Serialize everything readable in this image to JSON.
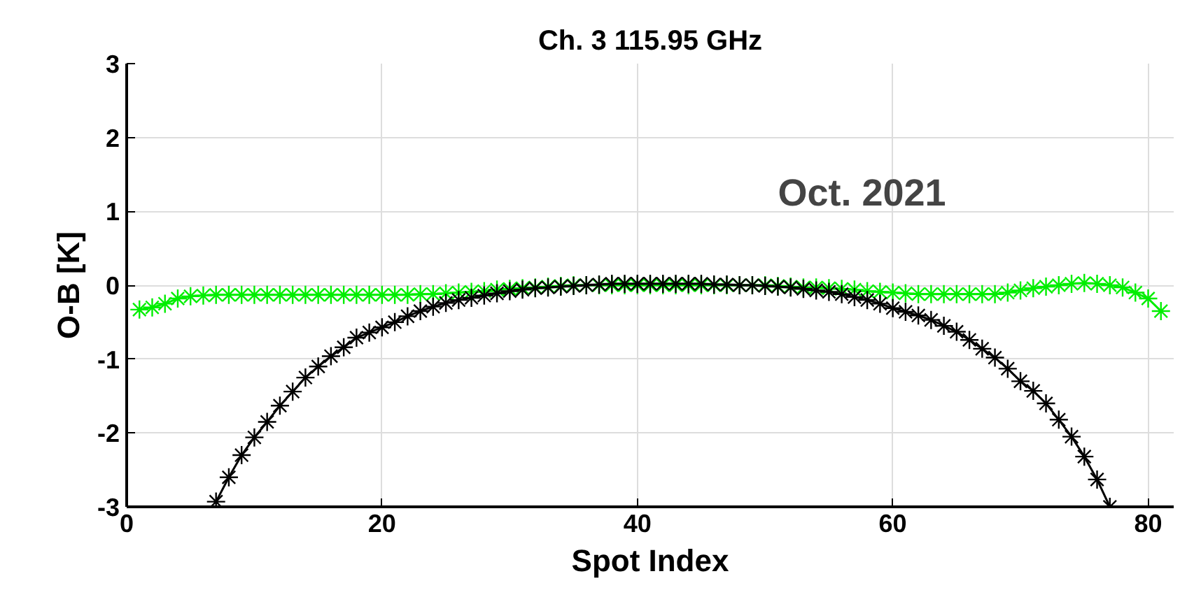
{
  "chart_data": {
    "type": "line",
    "title": "Ch. 3 115.95 GHz",
    "xlabel": "Spot Index",
    "ylabel": "O-B [K]",
    "annotations": [
      "Oct. 2021"
    ],
    "xlim": [
      0,
      82
    ],
    "ylim": [
      -3,
      3
    ],
    "xticks": [
      0,
      20,
      40,
      60,
      80
    ],
    "yticks": [
      -3,
      -2,
      -1,
      0,
      1,
      2,
      3
    ],
    "grid": true,
    "marker": "cross",
    "line_style": "solid",
    "series": [
      {
        "color": "#00ee00",
        "x": [
          1,
          2,
          3,
          4,
          5,
          6,
          7,
          8,
          9,
          10,
          11,
          12,
          13,
          14,
          15,
          16,
          17,
          18,
          19,
          20,
          21,
          22,
          23,
          24,
          25,
          26,
          27,
          28,
          29,
          30,
          31,
          32,
          33,
          34,
          35,
          36,
          37,
          38,
          39,
          40,
          41,
          42,
          43,
          44,
          45,
          46,
          47,
          48,
          49,
          50,
          51,
          52,
          53,
          54,
          55,
          56,
          57,
          58,
          59,
          60,
          61,
          62,
          63,
          64,
          65,
          66,
          67,
          68,
          69,
          70,
          71,
          72,
          73,
          74,
          75,
          76,
          77,
          78,
          79,
          80,
          81
        ],
        "values": [
          -0.33,
          -0.3,
          -0.25,
          -0.18,
          -0.15,
          -0.14,
          -0.13,
          -0.13,
          -0.13,
          -0.13,
          -0.13,
          -0.13,
          -0.13,
          -0.13,
          -0.13,
          -0.13,
          -0.13,
          -0.13,
          -0.13,
          -0.13,
          -0.13,
          -0.13,
          -0.12,
          -0.12,
          -0.11,
          -0.1,
          -0.09,
          -0.08,
          -0.06,
          -0.05,
          -0.04,
          -0.03,
          -0.02,
          -0.01,
          0,
          0,
          0,
          0,
          0,
          0,
          0,
          0,
          0,
          0,
          0,
          0,
          0,
          0,
          0,
          0,
          -0.01,
          -0.02,
          -0.03,
          -0.03,
          -0.04,
          -0.05,
          -0.06,
          -0.08,
          -0.09,
          -0.1,
          -0.11,
          -0.12,
          -0.12,
          -0.12,
          -0.12,
          -0.12,
          -0.12,
          -0.12,
          -0.1,
          -0.07,
          -0.04,
          -0.02,
          0,
          0.02,
          0.03,
          0.02,
          0,
          -0.03,
          -0.1,
          -0.18,
          -0.35
        ]
      },
      {
        "color": "#000000",
        "x": [
          7,
          8,
          9,
          10,
          11,
          12,
          13,
          14,
          15,
          16,
          17,
          18,
          19,
          20,
          21,
          22,
          23,
          24,
          25,
          26,
          27,
          28,
          29,
          30,
          31,
          32,
          33,
          34,
          35,
          36,
          37,
          38,
          39,
          40,
          41,
          42,
          43,
          44,
          45,
          46,
          47,
          48,
          49,
          50,
          51,
          52,
          53,
          54,
          55,
          56,
          57,
          58,
          59,
          60,
          61,
          62,
          63,
          64,
          65,
          66,
          67,
          68,
          69,
          70,
          71,
          72,
          73,
          74,
          75,
          76,
          77
        ],
        "values": [
          -2.93,
          -2.6,
          -2.3,
          -2.06,
          -1.85,
          -1.63,
          -1.44,
          -1.25,
          -1.1,
          -0.96,
          -0.84,
          -0.71,
          -0.64,
          -0.57,
          -0.5,
          -0.42,
          -0.35,
          -0.29,
          -0.24,
          -0.2,
          -0.17,
          -0.14,
          -0.11,
          -0.08,
          -0.06,
          -0.04,
          -0.03,
          -0.02,
          -0.01,
          0,
          0.01,
          0.02,
          0.02,
          0.02,
          0.02,
          0.02,
          0.02,
          0.02,
          0.02,
          0.01,
          0.01,
          0,
          0,
          -0.01,
          -0.02,
          -0.03,
          -0.05,
          -0.07,
          -0.09,
          -0.12,
          -0.16,
          -0.2,
          -0.25,
          -0.31,
          -0.36,
          -0.41,
          -0.47,
          -0.55,
          -0.63,
          -0.74,
          -0.86,
          -0.98,
          -1.13,
          -1.3,
          -1.43,
          -1.6,
          -1.82,
          -2.05,
          -2.32,
          -2.63,
          -3.0
        ]
      }
    ]
  }
}
